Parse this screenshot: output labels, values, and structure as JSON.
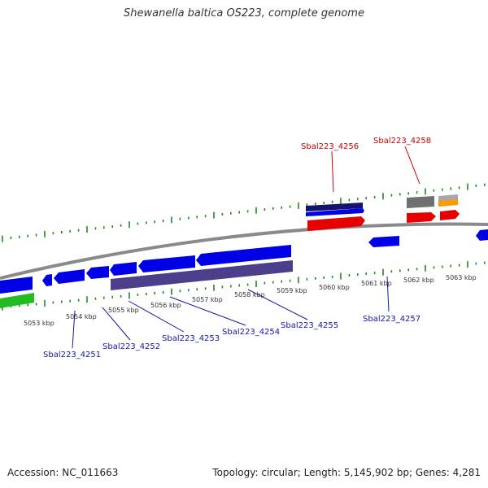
{
  "title": "Shewanella baltica OS223, complete genome",
  "footer": {
    "accession": "Accession: NC_011663",
    "topology": "Topology: circular; Length: 5,145,902 bp; Genes: 4,281"
  },
  "scale_labels": [
    "5053 kbp",
    "5054 kbp",
    "5055 kbp",
    "5056 kbp",
    "5057 kbp",
    "5058 kbp",
    "5059 kbp",
    "5060 kbp",
    "5061 kbp",
    "5062 kbp",
    "5063 kbp"
  ],
  "gene_labels": [
    {
      "text": "Sbal223_4251",
      "color": "#1515a8"
    },
    {
      "text": "Sbal223_4252",
      "color": "#1515a8"
    },
    {
      "text": "Sbal223_4253",
      "color": "#1515a8"
    },
    {
      "text": "Sbal223_4254",
      "color": "#1515a8"
    },
    {
      "text": "Sbal223_4255",
      "color": "#1515a8"
    },
    {
      "text": "Sbal223_4256",
      "color": "#cc0000"
    },
    {
      "text": "Sbal223_4257",
      "color": "#1515a8"
    },
    {
      "text": "Sbal223_4258",
      "color": "#cc0000"
    }
  ],
  "colors": {
    "forward_gene": "#0000e6",
    "reverse_gene": "#0000e6",
    "rna_band": "#4b3f8c",
    "pseudo": "#e60000",
    "green_feature": "#22bb22",
    "grey_feature": "#707070",
    "orange_feature": "#ff9900",
    "backbone": "#8a8a8a",
    "tick": "#1e8a1e"
  }
}
